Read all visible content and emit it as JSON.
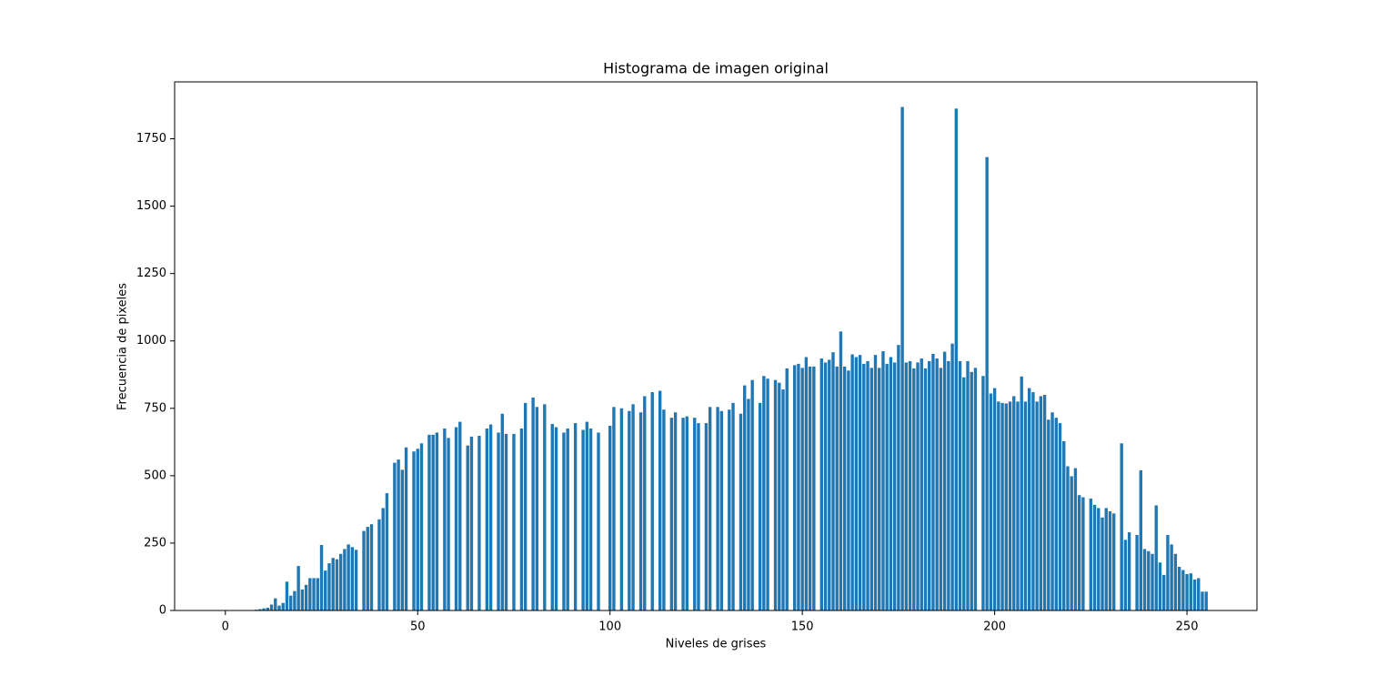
{
  "chart_data": {
    "type": "bar",
    "title": "Histograma de imagen original",
    "xlabel": "Niveles de grises",
    "ylabel": "Frecuencia de pixeles",
    "color": "#1f77b4",
    "x": [
      0,
      1,
      2,
      3,
      4,
      5,
      6,
      7,
      8,
      9,
      10,
      11,
      12,
      13,
      14,
      15,
      16,
      17,
      18,
      19,
      20,
      21,
      22,
      23,
      24,
      25,
      26,
      27,
      28,
      29,
      30,
      31,
      32,
      33,
      34,
      35,
      36,
      37,
      38,
      39,
      40,
      41,
      42,
      43,
      44,
      45,
      46,
      47,
      48,
      49,
      50,
      51,
      52,
      53,
      54,
      55,
      56,
      57,
      58,
      59,
      60,
      61,
      62,
      63,
      64,
      65,
      66,
      67,
      68,
      69,
      70,
      71,
      72,
      73,
      74,
      75,
      76,
      77,
      78,
      79,
      80,
      81,
      82,
      83,
      84,
      85,
      86,
      87,
      88,
      89,
      90,
      91,
      92,
      93,
      94,
      95,
      96,
      97,
      98,
      99,
      100,
      101,
      102,
      103,
      104,
      105,
      106,
      107,
      108,
      109,
      110,
      111,
      112,
      113,
      114,
      115,
      116,
      117,
      118,
      119,
      120,
      121,
      122,
      123,
      124,
      125,
      126,
      127,
      128,
      129,
      130,
      131,
      132,
      133,
      134,
      135,
      136,
      137,
      138,
      139,
      140,
      141,
      142,
      143,
      144,
      145,
      146,
      147,
      148,
      149,
      150,
      151,
      152,
      153,
      154,
      155,
      156,
      157,
      158,
      159,
      160,
      161,
      162,
      163,
      164,
      165,
      166,
      167,
      168,
      169,
      170,
      171,
      172,
      173,
      174,
      175,
      176,
      177,
      178,
      179,
      180,
      181,
      182,
      183,
      184,
      185,
      186,
      187,
      188,
      189,
      190,
      191,
      192,
      193,
      194,
      195,
      196,
      197,
      198,
      199,
      200,
      201,
      202,
      203,
      204,
      205,
      206,
      207,
      208,
      209,
      210,
      211,
      212,
      213,
      214,
      215,
      216,
      217,
      218,
      219,
      220,
      221,
      222,
      223,
      224,
      225,
      226,
      227,
      228,
      229,
      230,
      231,
      232,
      233,
      234,
      235,
      236,
      237,
      238,
      239,
      240,
      241,
      242,
      243,
      244,
      245,
      246,
      247,
      248,
      249,
      250,
      251,
      252,
      253,
      254,
      255
    ],
    "values": [
      0,
      0,
      0,
      0,
      0,
      0,
      0,
      0,
      3,
      5,
      8,
      10,
      22,
      45,
      18,
      28,
      107,
      55,
      72,
      165,
      78,
      95,
      120,
      120,
      120,
      243,
      148,
      175,
      195,
      190,
      210,
      228,
      245,
      235,
      225,
      0,
      295,
      310,
      320,
      0,
      338,
      380,
      435,
      0,
      548,
      560,
      522,
      605,
      0,
      590,
      600,
      620,
      0,
      652,
      652,
      660,
      0,
      675,
      640,
      0,
      680,
      700,
      0,
      612,
      645,
      0,
      648,
      0,
      675,
      690,
      0,
      660,
      730,
      655,
      0,
      655,
      0,
      675,
      770,
      0,
      790,
      755,
      0,
      765,
      0,
      692,
      680,
      0,
      660,
      675,
      0,
      695,
      0,
      670,
      700,
      675,
      0,
      660,
      0,
      0,
      685,
      755,
      0,
      750,
      0,
      740,
      765,
      0,
      735,
      795,
      0,
      810,
      0,
      815,
      745,
      0,
      715,
      735,
      0,
      715,
      720,
      0,
      715,
      695,
      0,
      695,
      755,
      0,
      755,
      740,
      0,
      745,
      770,
      0,
      730,
      835,
      785,
      855,
      0,
      770,
      870,
      860,
      0,
      855,
      845,
      820,
      898,
      0,
      910,
      915,
      900,
      940,
      905,
      905,
      0,
      935,
      920,
      930,
      958,
      905,
      1035,
      905,
      890,
      950,
      940,
      948,
      915,
      925,
      900,
      948,
      900,
      962,
      915,
      940,
      920,
      985,
      1868,
      920,
      925,
      898,
      920,
      935,
      898,
      925,
      952,
      935,
      900,
      960,
      925,
      990,
      1862,
      925,
      865,
      925,
      885,
      900,
      0,
      870,
      1682,
      805,
      825,
      775,
      770,
      768,
      775,
      795,
      775,
      868,
      775,
      825,
      810,
      775,
      795,
      800,
      708,
      735,
      715,
      695,
      628,
      535,
      498,
      528,
      428,
      420,
      0,
      415,
      392,
      380,
      345,
      380,
      368,
      360,
      0,
      620,
      262,
      290,
      0,
      280,
      520,
      228,
      220,
      210,
      390,
      178,
      132,
      280,
      245,
      210,
      162,
      150,
      135,
      138,
      115,
      120,
      70,
      70
    ],
    "xlim": [
      -13.19,
      268.19
    ],
    "ylim": [
      0,
      1961
    ],
    "xticks": [
      0,
      50,
      100,
      150,
      200,
      250
    ],
    "yticks": [
      0,
      250,
      500,
      750,
      1000,
      1250,
      1500,
      1750
    ]
  }
}
